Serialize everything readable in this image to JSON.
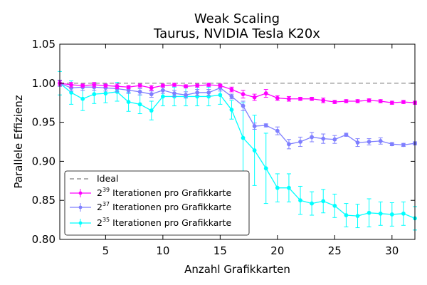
{
  "chart_data": {
    "type": "line",
    "title": "Weak Scaling",
    "subtitle": "Taurus, NVIDIA Tesla K20x",
    "xlabel": "Anzahl Grafikkarten",
    "ylabel": "Parallele Effizienz",
    "xlim": [
      1,
      32
    ],
    "ylim": [
      0.8,
      1.05
    ],
    "xticks": [
      5,
      10,
      15,
      20,
      25,
      30
    ],
    "yticks": [
      0.8,
      0.85,
      0.9,
      0.95,
      1.0,
      1.05
    ],
    "ytick_labels": [
      "0.80",
      "0.85",
      "0.90",
      "0.95",
      "1.00",
      "1.05"
    ],
    "grid": false,
    "legend_position": "lower-left",
    "x": [
      1,
      2,
      3,
      4,
      5,
      6,
      7,
      8,
      9,
      10,
      11,
      12,
      13,
      14,
      15,
      16,
      17,
      18,
      19,
      20,
      21,
      22,
      23,
      24,
      25,
      26,
      27,
      28,
      29,
      30,
      31,
      32
    ],
    "ideal": {
      "name": "Ideal",
      "value": 1.0,
      "color": "#808080"
    },
    "series": [
      {
        "name_base": "2",
        "name_exp": "39",
        "name_rest": " Iterationen pro Grafikkarte",
        "color": "#ff00ff",
        "values": [
          1.0,
          0.998,
          0.997,
          0.998,
          0.997,
          0.996,
          0.995,
          0.997,
          0.994,
          0.997,
          0.998,
          0.996,
          0.997,
          0.998,
          0.997,
          0.992,
          0.986,
          0.982,
          0.987,
          0.981,
          0.98,
          0.98,
          0.98,
          0.978,
          0.976,
          0.977,
          0.977,
          0.978,
          0.977,
          0.975,
          0.976,
          0.975
        ],
        "errors": [
          0.003,
          0.003,
          0.002,
          0.003,
          0.002,
          0.003,
          0.002,
          0.002,
          0.003,
          0.002,
          0.002,
          0.002,
          0.002,
          0.002,
          0.002,
          0.003,
          0.005,
          0.004,
          0.005,
          0.003,
          0.003,
          0.002,
          0.002,
          0.003,
          0.002,
          0.002,
          0.002,
          0.002,
          0.002,
          0.002,
          0.002,
          0.002
        ]
      },
      {
        "name_base": "2",
        "name_exp": "37",
        "name_rest": " Iterationen pro Grafikkarte",
        "color": "#7f7fff",
        "values": [
          1.0,
          0.994,
          0.995,
          0.995,
          0.994,
          0.993,
          0.991,
          0.989,
          0.986,
          0.991,
          0.987,
          0.985,
          0.988,
          0.988,
          0.994,
          0.983,
          0.971,
          0.945,
          0.946,
          0.939,
          0.922,
          0.925,
          0.931,
          0.929,
          0.928,
          0.934,
          0.924,
          0.925,
          0.926,
          0.922,
          0.921,
          0.923
        ],
        "errors": [
          0.004,
          0.004,
          0.004,
          0.004,
          0.004,
          0.004,
          0.004,
          0.004,
          0.004,
          0.004,
          0.004,
          0.004,
          0.004,
          0.004,
          0.004,
          0.003,
          0.006,
          0.004,
          0.002,
          0.005,
          0.006,
          0.006,
          0.006,
          0.006,
          0.005,
          0.002,
          0.005,
          0.004,
          0.004,
          0.002,
          0.002,
          0.002
        ]
      },
      {
        "name_base": "2",
        "name_exp": "35",
        "name_rest": " Iterationen pro Grafikkarte",
        "color": "#00ffff",
        "values": [
          1.0,
          0.988,
          0.98,
          0.986,
          0.987,
          0.989,
          0.976,
          0.973,
          0.965,
          0.983,
          0.983,
          0.983,
          0.983,
          0.983,
          0.985,
          0.966,
          0.93,
          0.914,
          0.891,
          0.866,
          0.866,
          0.85,
          0.846,
          0.849,
          0.843,
          0.831,
          0.83,
          0.834,
          0.833,
          0.832,
          0.833,
          0.827
        ]
      }
    ],
    "errors_series3": [
      0.015,
      0.015,
      0.015,
      0.012,
      0.012,
      0.012,
      0.012,
      0.012,
      0.012,
      0.012,
      0.012,
      0.012,
      0.012,
      0.012,
      0.012,
      0.012,
      0.045,
      0.045,
      0.045,
      0.018,
      0.018,
      0.018,
      0.015,
      0.015,
      0.015,
      0.015,
      0.015,
      0.018,
      0.015,
      0.015,
      0.015,
      0.015
    ]
  }
}
